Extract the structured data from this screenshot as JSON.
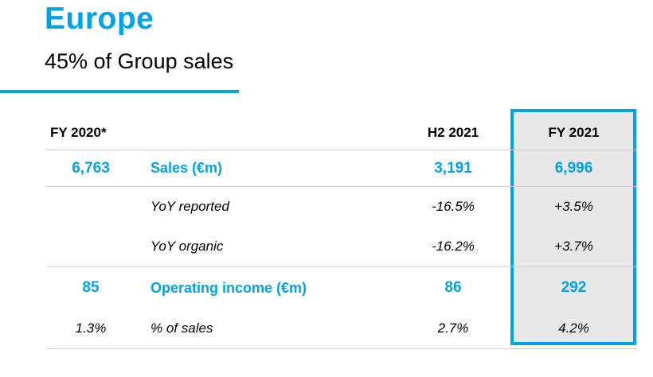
{
  "header": {
    "title": "Europe",
    "subtitle": "45% of Group sales"
  },
  "colors": {
    "accent": "#00a3e8",
    "highlight_bg": "#e8e8e8"
  },
  "table": {
    "columns": [
      "FY 2020*",
      "",
      "H2 2021",
      "FY 2021"
    ],
    "rows": [
      {
        "fy2020": "6,763",
        "label": "Sales (€m)",
        "h2_2021": "3,191",
        "fy2021": "6,996"
      },
      {
        "fy2020": "",
        "label": "YoY reported",
        "h2_2021": "-16.5%",
        "fy2021": "+3.5%"
      },
      {
        "fy2020": "",
        "label": "YoY organic",
        "h2_2021": "-16.2%",
        "fy2021": "+3.7%"
      },
      {
        "fy2020": "85",
        "label": "Operating income (€m)",
        "h2_2021": "86",
        "fy2021": "292"
      },
      {
        "fy2020": "1.3%",
        "label": "% of sales",
        "h2_2021": "2.7%",
        "fy2021": "4.2%"
      }
    ]
  }
}
